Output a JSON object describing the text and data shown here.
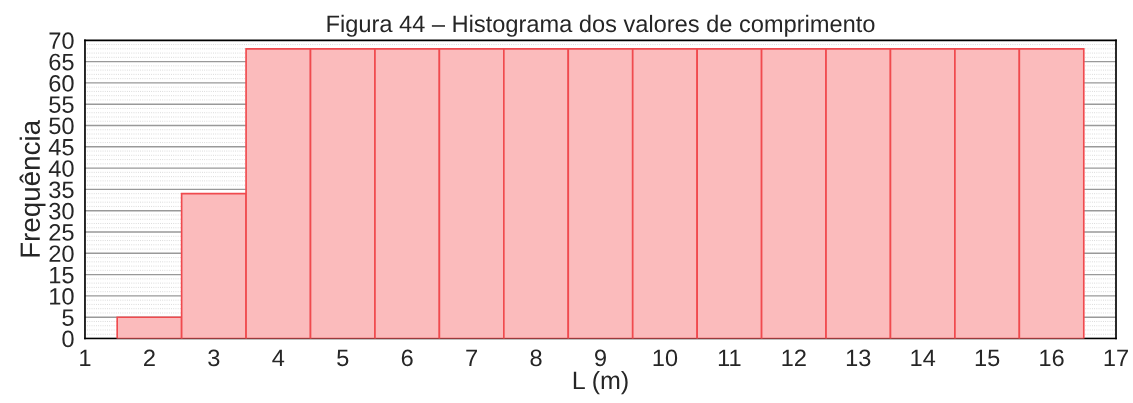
{
  "chart_data": {
    "type": "histogram",
    "title": "Figura 44 – Histograma dos valores de comprimento",
    "xlabel": "L (m)",
    "ylabel": "Frequência",
    "bins": [
      1.5,
      2.5,
      3.5,
      4.5,
      5.5,
      6.5,
      7.5,
      8.5,
      9.5,
      10.5,
      11.5,
      12.5,
      13.5,
      14.5,
      15.5,
      16.5
    ],
    "values": [
      5,
      34,
      68,
      68,
      68,
      68,
      68,
      68,
      68,
      68,
      68,
      68,
      68,
      68,
      68
    ],
    "color": "#fbbbbc",
    "xlim": [
      1,
      17
    ],
    "xticks": [
      1,
      2,
      3,
      4,
      5,
      6,
      7,
      8,
      9,
      10,
      11,
      12,
      13,
      14,
      15,
      16,
      17
    ],
    "ylim": [
      0,
      70
    ],
    "yticks": [
      0,
      5,
      10,
      15,
      20,
      25,
      30,
      35,
      40,
      45,
      50,
      55,
      60,
      65,
      70
    ],
    "grid": "y"
  }
}
